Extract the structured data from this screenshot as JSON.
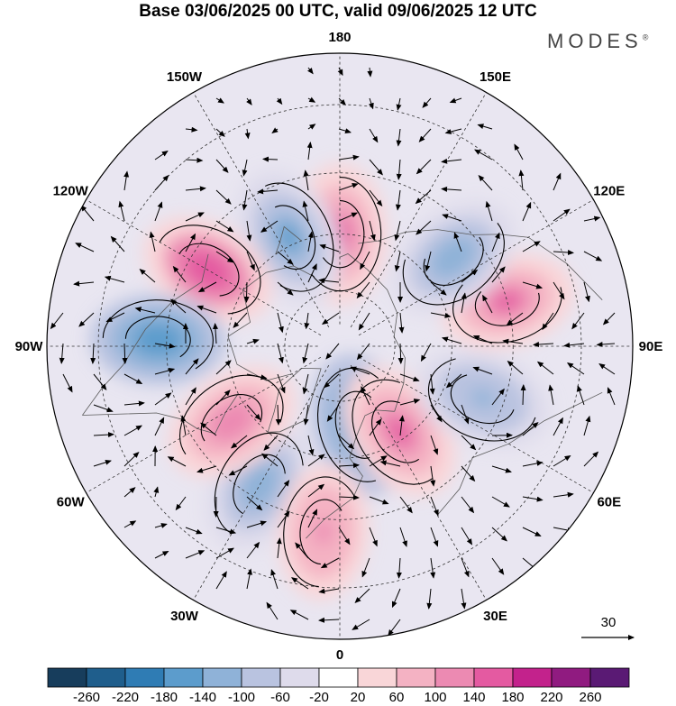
{
  "title": "Base 03/06/2025 00 UTC, valid 09/06/2025 12 UTC",
  "brand": "MODES",
  "brand_mark": "®",
  "longitude_labels": [
    "180",
    "150E",
    "120E",
    "90E",
    "60E",
    "30E",
    "0",
    "30W",
    "60W",
    "90W",
    "120W",
    "150W"
  ],
  "vector_reference": "30",
  "colorbar": {
    "colors": [
      "#173d5c",
      "#1f5e8c",
      "#2f7cb4",
      "#5c9ccc",
      "#8fb2d8",
      "#b9c3e0",
      "#dedbeb",
      "#ffffff",
      "#f9d6d8",
      "#f4b2c3",
      "#ec8ab2",
      "#e45aa1",
      "#c3228c",
      "#901b80",
      "#5a1a74"
    ],
    "labels": [
      "-260",
      "-220",
      "-180",
      "-140",
      "-100",
      "-60",
      "-20",
      "20",
      "60",
      "100",
      "140",
      "180",
      "220",
      "260"
    ]
  },
  "anomaly_centers": [
    {
      "sign": "positive",
      "lon": 180,
      "lat": 60,
      "value": 150
    },
    {
      "sign": "negative",
      "lon": 205,
      "lat": 58,
      "value": -150
    },
    {
      "sign": "positive",
      "lon": 240,
      "lat": 50,
      "value": 170
    },
    {
      "sign": "negative",
      "lon": 268,
      "lat": 43,
      "value": -180
    },
    {
      "sign": "positive",
      "lon": 105,
      "lat": 45,
      "value": 160
    },
    {
      "sign": "negative",
      "lon": 128,
      "lat": 52,
      "value": -130
    },
    {
      "sign": "negative",
      "lon": 330,
      "lat": 48,
      "value": -140
    },
    {
      "sign": "positive",
      "lon": 305,
      "lat": 55,
      "value": 120
    },
    {
      "sign": "negative",
      "lon": 15,
      "lat": 68,
      "value": -180
    },
    {
      "sign": "positive",
      "lon": 35,
      "lat": 62,
      "value": 160
    },
    {
      "sign": "positive",
      "lon": 355,
      "lat": 42,
      "value": 110
    },
    {
      "sign": "negative",
      "lon": 70,
      "lat": 50,
      "value": -110
    }
  ]
}
